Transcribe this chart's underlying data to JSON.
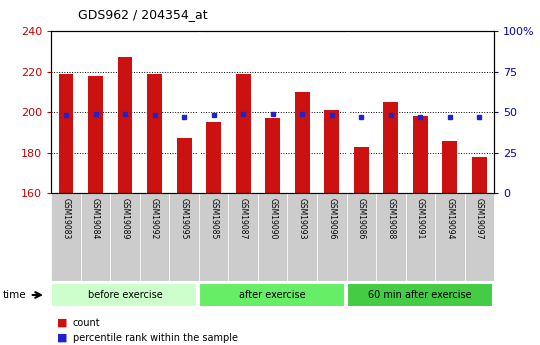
{
  "title": "GDS962 / 204354_at",
  "samples": [
    "GSM19083",
    "GSM19084",
    "GSM19089",
    "GSM19092",
    "GSM19095",
    "GSM19085",
    "GSM19087",
    "GSM19090",
    "GSM19093",
    "GSM19096",
    "GSM19086",
    "GSM19088",
    "GSM19091",
    "GSM19094",
    "GSM19097"
  ],
  "count_values": [
    219,
    218,
    227,
    219,
    187,
    195,
    219,
    197,
    210,
    201,
    183,
    205,
    198,
    186,
    178
  ],
  "percentile_values": [
    48,
    49,
    49,
    48,
    47,
    48,
    49,
    49,
    49,
    48,
    47,
    48,
    47,
    47,
    47
  ],
  "bar_bottom": 160,
  "ylim_left": [
    160,
    240
  ],
  "ylim_right": [
    0,
    100
  ],
  "yticks_left": [
    160,
    180,
    200,
    220,
    240
  ],
  "yticks_right": [
    0,
    25,
    50,
    75,
    100
  ],
  "yticklabels_right": [
    "0",
    "25",
    "50",
    "75",
    "100%"
  ],
  "groups": [
    {
      "label": "before exercise",
      "start": 0,
      "end": 5,
      "color": "#ccffcc"
    },
    {
      "label": "after exercise",
      "start": 5,
      "end": 10,
      "color": "#66ee66"
    },
    {
      "label": "60 min after exercise",
      "start": 10,
      "end": 15,
      "color": "#44cc44"
    }
  ],
  "bar_color": "#cc1111",
  "dot_color": "#2222cc",
  "tick_color_left": "#cc0000",
  "tick_color_right": "#0000cc",
  "xlabel_area_color": "#cccccc",
  "bg_color": "#ffffff",
  "plot_bg": "#ffffff",
  "n_bars": 15
}
